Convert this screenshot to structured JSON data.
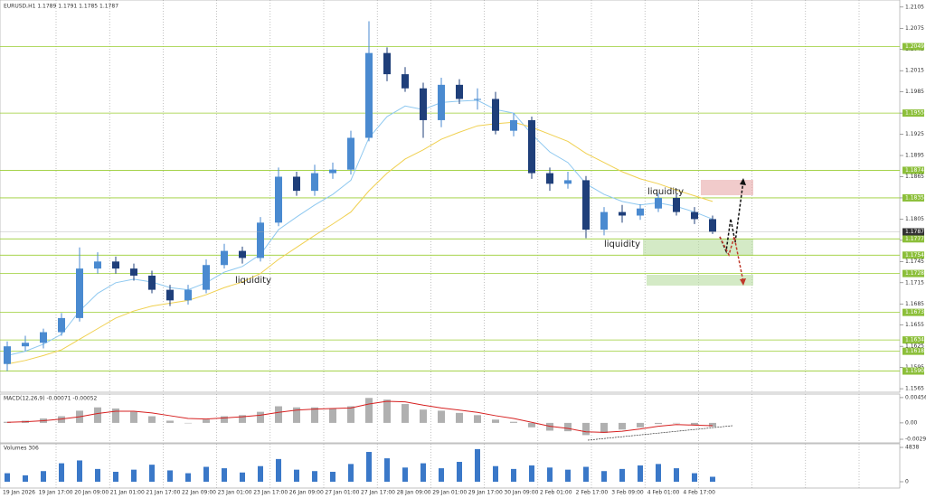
{
  "chart_data": {
    "type": "candlestick",
    "title": "EURUSD,H1 1.1789 1.1791 1.1785 1.1787",
    "up_color": "#4a8ad0",
    "down_color": "#1f3f7a",
    "open": [
      1.16,
      1.1625,
      1.163,
      1.1645,
      1.1665,
      1.1735,
      1.1745,
      1.1735,
      1.1725,
      1.1705,
      1.169,
      1.1705,
      1.174,
      1.176,
      1.175,
      1.18,
      1.1865,
      1.1845,
      1.187,
      1.1875,
      1.192,
      1.204,
      1.201,
      1.199,
      1.1945,
      1.1995,
      1.1975,
      1.1975,
      1.193,
      1.1945,
      1.187,
      1.1855,
      1.186,
      1.179,
      1.1815,
      1.181,
      1.182,
      1.1835,
      1.1815,
      1.1805
    ],
    "high": [
      1.1632,
      1.164,
      1.165,
      1.1672,
      1.1765,
      1.1758,
      1.1752,
      1.1742,
      1.1732,
      1.1712,
      1.1712,
      1.1748,
      1.177,
      1.1766,
      1.1808,
      1.1878,
      1.1872,
      1.1882,
      1.1885,
      1.193,
      1.2085,
      1.2048,
      1.202,
      1.1998,
      1.2005,
      1.2003,
      1.199,
      1.1985,
      1.1955,
      1.195,
      1.1878,
      1.1872,
      1.1866,
      1.1822,
      1.1825,
      1.1826,
      1.1842,
      1.184,
      1.1822,
      1.181
    ],
    "low": [
      1.159,
      1.1618,
      1.1622,
      1.164,
      1.166,
      1.1728,
      1.1728,
      1.1718,
      1.17,
      1.1682,
      1.1684,
      1.17,
      1.1735,
      1.1742,
      1.1745,
      1.1795,
      1.1838,
      1.1838,
      1.1862,
      1.1868,
      1.1915,
      1.2,
      1.1985,
      1.192,
      1.1935,
      1.1968,
      1.196,
      1.1925,
      1.1922,
      1.1862,
      1.1845,
      1.1848,
      1.1778,
      1.1782,
      1.18,
      1.1804,
      1.1815,
      1.181,
      1.1798,
      1.1784
    ],
    "close": [
      1.1625,
      1.163,
      1.1645,
      1.1665,
      1.1735,
      1.1745,
      1.1735,
      1.1725,
      1.1705,
      1.169,
      1.1705,
      1.174,
      1.176,
      1.175,
      1.18,
      1.1865,
      1.1845,
      1.187,
      1.1875,
      1.192,
      1.204,
      1.201,
      1.199,
      1.1945,
      1.1995,
      1.1975,
      1.1975,
      1.193,
      1.1945,
      1.187,
      1.1855,
      1.186,
      1.179,
      1.1815,
      1.181,
      1.182,
      1.1835,
      1.1815,
      1.1805,
      1.1787
    ],
    "moving_averages": [
      {
        "color": "#8ec8f0",
        "values": [
          1.1612,
          1.1618,
          1.1628,
          1.1642,
          1.1675,
          1.17,
          1.1715,
          1.172,
          1.1716,
          1.1708,
          1.1705,
          1.1715,
          1.173,
          1.1738,
          1.1755,
          1.179,
          1.1808,
          1.1825,
          1.184,
          1.186,
          1.192,
          1.195,
          1.1965,
          1.196,
          1.197,
          1.1972,
          1.1973,
          1.196,
          1.1955,
          1.1925,
          1.19,
          1.1885,
          1.1855,
          1.184,
          1.183,
          1.1825,
          1.1828,
          1.1823,
          1.1815,
          1.1805
        ]
      },
      {
        "color": "#f0d050",
        "values": [
          1.16,
          1.1605,
          1.1612,
          1.162,
          1.1635,
          1.165,
          1.1665,
          1.1675,
          1.1682,
          1.1686,
          1.169,
          1.1698,
          1.1708,
          1.1716,
          1.1728,
          1.1748,
          1.1765,
          1.1782,
          1.1798,
          1.1815,
          1.1845,
          1.187,
          1.189,
          1.1903,
          1.1918,
          1.1928,
          1.1937,
          1.194,
          1.1942,
          1.1935,
          1.1925,
          1.1915,
          1.1898,
          1.1885,
          1.1872,
          1.1862,
          1.1855,
          1.1846,
          1.1838,
          1.183
        ]
      }
    ],
    "ylim": [
      1.156,
      1.2115
    ],
    "yticks": [
      1.2105,
      1.2075,
      1.2045,
      1.2015,
      1.1985,
      1.1955,
      1.1925,
      1.1895,
      1.1865,
      1.1835,
      1.1805,
      1.1775,
      1.1745,
      1.1715,
      1.1685,
      1.1655,
      1.1625,
      1.1595,
      1.1565
    ],
    "levels": [
      1.2049,
      1.1955,
      1.1874,
      1.1835,
      1.1777,
      1.1754,
      1.1728,
      1.1673,
      1.1634,
      1.1618,
      {
        "value": 1.159,
        "label": "1.1590"
      }
    ],
    "current_price": 1.1787,
    "annotations": [
      "liquidity",
      "liquidity",
      "liquidity"
    ],
    "x_labels": [
      "19 Jan 2026",
      "19 Jan 17:00",
      "20 Jan 09:00",
      "21 Jan 01:00",
      "21 Jan 17:00",
      "22 Jan 09:00",
      "23 Jan 01:00",
      "23 Jan 17:00",
      "26 Jan 09:00",
      "27 Jan 01:00",
      "27 Jan 17:00",
      "28 Jan 09:00",
      "29 Jan 01:00",
      "29 Jan 17:00",
      "30 Jan 09:00",
      "2 Feb 01:00",
      "2 Feb 17:00",
      "3 Feb 09:00",
      "4 Feb 01:00",
      "4 Feb 17:00"
    ],
    "macd": {
      "title": "MACD(12,26,9) -0.00071 -0.00052",
      "histogram": [
        0.0002,
        0.0004,
        0.0008,
        0.0012,
        0.0022,
        0.0028,
        0.0026,
        0.002,
        0.0012,
        0.0004,
        0,
        0.0006,
        0.0012,
        0.0014,
        0.002,
        0.003,
        0.0028,
        0.0028,
        0.0026,
        0.003,
        0.0045,
        0.0042,
        0.0034,
        0.0024,
        0.0022,
        0.0018,
        0.0014,
        0.0006,
        0.0002,
        -0.0008,
        -0.0014,
        -0.0015,
        -0.0022,
        -0.0018,
        -0.0012,
        -0.0008,
        -0.0002,
        0,
        -0.0004,
        -0.0007
      ],
      "signal": [
        0.0001,
        0.0002,
        0.0004,
        0.0007,
        0.0011,
        0.0017,
        0.0021,
        0.0021,
        0.0018,
        0.0013,
        0.0008,
        0.0007,
        0.0009,
        0.0011,
        0.0014,
        0.0019,
        0.0023,
        0.0025,
        0.0026,
        0.0027,
        0.0034,
        0.0039,
        0.0038,
        0.0032,
        0.0027,
        0.0023,
        0.0019,
        0.0013,
        0.0008,
        0.0001,
        -0.0006,
        -0.001,
        -0.0016,
        -0.0017,
        -0.0015,
        -0.0011,
        -0.0006,
        -0.0003,
        -0.0004,
        -0.0005
      ],
      "ylim": [
        -0.0036,
        0.0052
      ],
      "yticks": [
        0.00456,
        {
          "value": 0,
          "label": "0.00"
        },
        -0.00295
      ]
    },
    "volume": {
      "title": "Volumes 306",
      "color": "#3a78c8",
      "values": [
        1200,
        900,
        1500,
        2600,
        3000,
        1800,
        1400,
        1700,
        2400,
        1600,
        1200,
        2100,
        1900,
        1300,
        2200,
        3200,
        1700,
        1500,
        1400,
        2500,
        4200,
        3300,
        2000,
        2600,
        1900,
        2800,
        4600,
        2200,
        1800,
        2300,
        2000,
        1700,
        2100,
        1500,
        1800,
        2300,
        2500,
        1900,
        1200,
        700
      ],
      "ylim": [
        0,
        5350
      ],
      "yticks": [
        4838,
        0
      ]
    }
  }
}
